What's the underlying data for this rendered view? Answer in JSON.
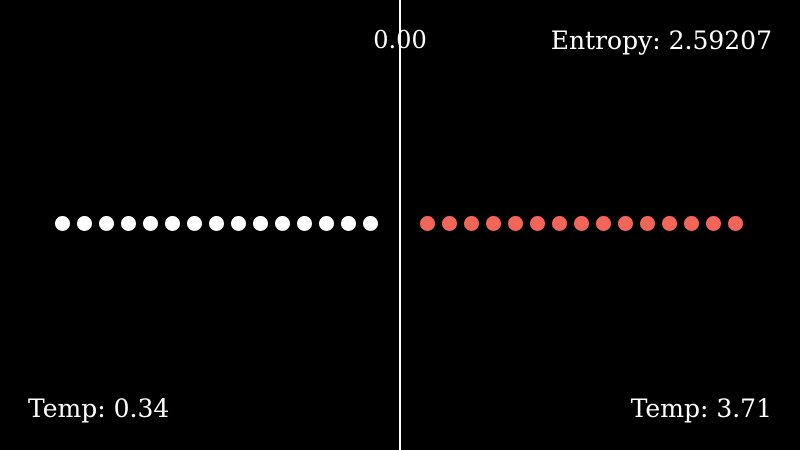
{
  "time": "0.00",
  "entropy": {
    "label": "Entropy:",
    "value": "2.59207"
  },
  "left_chamber": {
    "temp_label": "Temp:",
    "temp_value": "0.34",
    "particle_count": 15,
    "particle_color": "#ffffff"
  },
  "right_chamber": {
    "temp_label": "Temp:",
    "temp_value": "3.71",
    "particle_count": 15,
    "particle_color": "#f2665a"
  },
  "colors": {
    "background": "#000000",
    "divider": "#ffffff",
    "text": "#ffffff"
  }
}
